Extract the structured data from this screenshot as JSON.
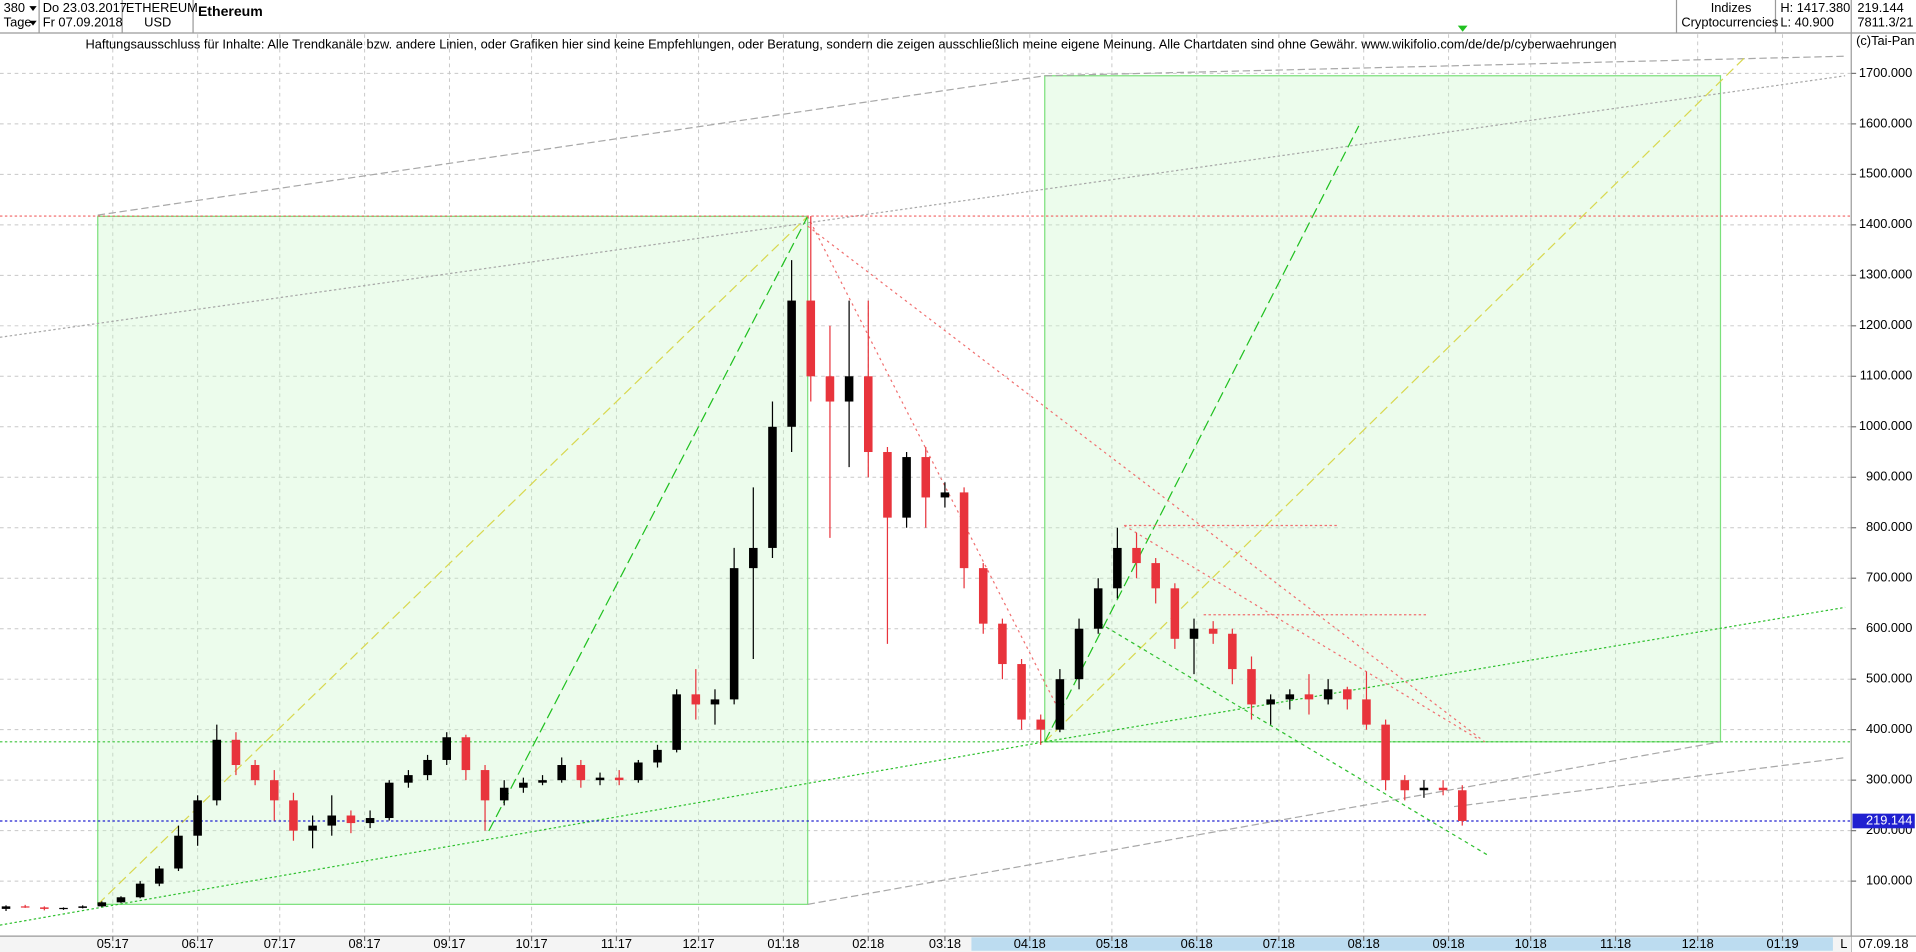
{
  "header": {
    "period": "380",
    "unit": "Tage",
    "date_from": "Do 23.03.2017",
    "date_to": "Fr 07.09.2018",
    "symbol": "ETHEREUM",
    "currency": "USD",
    "group": "Indizes",
    "subgroup": "Cryptocurrencies",
    "high": "H: 1417.380",
    "low": "L: 40.900",
    "last": "219.144",
    "info": "7811.3/21",
    "copyright": "(c)Tai-Pan",
    "disclaimer": "Haftungsausschluss für Inhalte: Alle Trendkanäle bzw. andere Linien, oder Grafiken hier sind keine Empfehlungen, oder Beratung, sondern die zeigen ausschließlich meine eigene Meinung. Alle Chartdaten sind ohne Gewähr.  www.wikifolio.com/de/de/p/cyberwaehrungen",
    "scale_mode": "L",
    "end_date": "07.09.18"
  },
  "chart_data": {
    "type": "candlestick",
    "title": "Ethereum",
    "x": [
      0,
      7,
      14,
      21,
      28,
      35,
      42,
      49,
      56,
      63,
      70,
      77,
      84,
      91,
      98,
      105,
      112,
      119,
      126,
      133,
      140,
      147,
      154,
      161,
      168,
      175,
      182,
      189,
      196,
      203,
      210,
      217,
      224,
      231,
      238,
      245,
      252,
      259,
      266,
      273,
      280,
      287,
      294,
      301,
      308,
      315,
      322,
      329,
      336,
      343,
      350,
      357,
      364,
      371,
      378,
      385,
      392,
      399,
      406,
      413,
      420,
      427,
      434,
      441,
      448,
      455,
      462,
      469,
      476,
      483,
      490,
      497,
      504,
      511,
      518,
      525,
      532
    ],
    "open": [
      45,
      50,
      48,
      45,
      47,
      50,
      58,
      68,
      95,
      125,
      190,
      260,
      380,
      330,
      300,
      260,
      200,
      210,
      230,
      215,
      225,
      295,
      310,
      340,
      385,
      320,
      260,
      285,
      295,
      300,
      330,
      300,
      305,
      300,
      335,
      360,
      470,
      450,
      460,
      720,
      760,
      1000,
      1250,
      1100,
      1050,
      1100,
      950,
      820,
      940,
      860,
      870,
      720,
      610,
      530,
      420,
      400,
      500,
      600,
      680,
      760,
      730,
      680,
      580,
      600,
      590,
      520,
      450,
      460,
      470,
      460,
      480,
      460,
      410,
      300,
      280,
      285,
      280
    ],
    "high": [
      52,
      53,
      50,
      48,
      52,
      60,
      70,
      100,
      130,
      210,
      270,
      410,
      395,
      340,
      320,
      275,
      230,
      270,
      240,
      240,
      300,
      320,
      350,
      395,
      390,
      330,
      300,
      305,
      310,
      345,
      340,
      315,
      320,
      340,
      370,
      480,
      520,
      480,
      760,
      880,
      1050,
      1330,
      1417.38,
      1200,
      1250,
      1250,
      960,
      950,
      960,
      890,
      880,
      730,
      620,
      540,
      430,
      520,
      620,
      700,
      800,
      790,
      740,
      690,
      620,
      615,
      600,
      545,
      470,
      480,
      510,
      500,
      485,
      515,
      420,
      310,
      300,
      300,
      290
    ],
    "low": [
      40.9,
      47,
      42,
      43,
      46,
      49,
      57,
      66,
      90,
      120,
      170,
      250,
      310,
      290,
      220,
      180,
      165,
      190,
      195,
      205,
      220,
      285,
      300,
      330,
      300,
      200,
      250,
      275,
      290,
      295,
      285,
      290,
      290,
      295,
      325,
      355,
      420,
      410,
      450,
      540,
      740,
      950,
      1050,
      780,
      920,
      900,
      570,
      800,
      800,
      840,
      680,
      590,
      500,
      400,
      370,
      395,
      480,
      590,
      660,
      700,
      650,
      560,
      510,
      570,
      490,
      420,
      410,
      440,
      430,
      450,
      440,
      400,
      280,
      260,
      265,
      270,
      210
    ],
    "close": [
      50,
      48,
      45,
      47,
      50,
      58,
      68,
      95,
      125,
      190,
      260,
      380,
      330,
      300,
      260,
      200,
      210,
      230,
      215,
      225,
      295,
      310,
      340,
      385,
      320,
      260,
      285,
      295,
      300,
      330,
      300,
      305,
      300,
      335,
      360,
      470,
      450,
      460,
      720,
      760,
      1000,
      1250,
      1100,
      1050,
      1100,
      950,
      820,
      940,
      860,
      870,
      720,
      610,
      530,
      420,
      400,
      500,
      600,
      680,
      760,
      730,
      680,
      580,
      600,
      590,
      520,
      450,
      460,
      470,
      460,
      480,
      460,
      410,
      300,
      280,
      285,
      280,
      219.144
    ],
    "up_color": "#000000",
    "down_color": "#e8343c",
    "xlim": [
      -2.2,
      674.1
    ],
    "xticks": [
      {
        "value": 39,
        "label": "05.17"
      },
      {
        "value": 70,
        "label": "06.17"
      },
      {
        "value": 100,
        "label": "07.17"
      },
      {
        "value": 131,
        "label": "08.17"
      },
      {
        "value": 162,
        "label": "09.17"
      },
      {
        "value": 192,
        "label": "10.17"
      },
      {
        "value": 223,
        "label": "11.17"
      },
      {
        "value": 253,
        "label": "12.17"
      },
      {
        "value": 284,
        "label": "01.18"
      },
      {
        "value": 315,
        "label": "02.18"
      },
      {
        "value": 343,
        "label": "03.18"
      },
      {
        "value": 374,
        "label": "04.18"
      },
      {
        "value": 404,
        "label": "05.18"
      },
      {
        "value": 435,
        "label": "06.18"
      },
      {
        "value": 465,
        "label": "07.18"
      },
      {
        "value": 496,
        "label": "08.18"
      },
      {
        "value": 527,
        "label": "09.18"
      },
      {
        "value": 557,
        "label": "10.18"
      },
      {
        "value": 588,
        "label": "11.18"
      },
      {
        "value": 618,
        "label": "12.18"
      },
      {
        "value": 649,
        "label": "01.19"
      }
    ],
    "ylim": [
      -6.5,
      1777.6
    ],
    "yticks": [
      {
        "value": 100,
        "label": "100.000"
      },
      {
        "value": 200,
        "label": "200.000"
      },
      {
        "value": 300,
        "label": "300.000"
      },
      {
        "value": 400,
        "label": "400.000"
      },
      {
        "value": 500,
        "label": "500.000"
      },
      {
        "value": 600,
        "label": "600.000"
      },
      {
        "value": 700,
        "label": "700.000"
      },
      {
        "value": 800,
        "label": "800.000"
      },
      {
        "value": 900,
        "label": "900.000"
      },
      {
        "value": 1000,
        "label": "1000.000"
      },
      {
        "value": 1100,
        "label": "1100.000"
      },
      {
        "value": 1200,
        "label": "1200.000"
      },
      {
        "value": 1300,
        "label": "1300.000"
      },
      {
        "value": 1400,
        "label": "1400.000"
      },
      {
        "value": 1500,
        "label": "1500.000"
      },
      {
        "value": 1600,
        "label": "1600.000"
      },
      {
        "value": 1700,
        "label": "1700.000"
      }
    ],
    "grid": true
  }
}
